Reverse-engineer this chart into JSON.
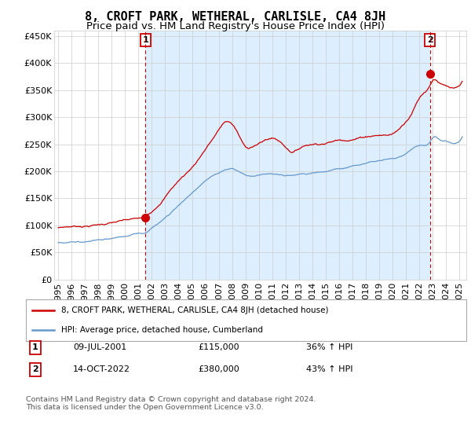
{
  "title": "8, CROFT PARK, WETHERAL, CARLISLE, CA4 8JH",
  "subtitle": "Price paid vs. HM Land Registry's House Price Index (HPI)",
  "ylabel_ticks": [
    "£0",
    "£50K",
    "£100K",
    "£150K",
    "£200K",
    "£250K",
    "£300K",
    "£350K",
    "£400K",
    "£450K"
  ],
  "ytick_values": [
    0,
    50000,
    100000,
    150000,
    200000,
    250000,
    300000,
    350000,
    400000,
    450000
  ],
  "ylim": [
    0,
    460000
  ],
  "xlim_start": 1994.7,
  "xlim_end": 2025.5,
  "sale1_year": 2001.52,
  "sale1_price": 115000,
  "sale2_year": 2022.79,
  "sale2_price": 380000,
  "sale1_label": "1",
  "sale2_label": "2",
  "sale1_date": "09-JUL-2001",
  "sale1_amount": "£115,000",
  "sale1_hpi": "36% ↑ HPI",
  "sale2_date": "14-OCT-2022",
  "sale2_amount": "£380,000",
  "sale2_hpi": "43% ↑ HPI",
  "legend_line1": "8, CROFT PARK, WETHERAL, CARLISLE, CA4 8JH (detached house)",
  "legend_line2": "HPI: Average price, detached house, Cumberland",
  "footnote": "Contains HM Land Registry data © Crown copyright and database right 2024.\nThis data is licensed under the Open Government Licence v3.0.",
  "line_color_red": "#cc0000",
  "line_color_blue": "#6699cc",
  "vline_color": "#cc0000",
  "shade_color": "#ddeeff",
  "background_color": "#ffffff",
  "grid_color": "#cccccc",
  "title_fontsize": 11,
  "subtitle_fontsize": 9.5,
  "tick_fontsize": 8,
  "xtick_years": [
    1995,
    1996,
    1997,
    1998,
    1999,
    2000,
    2001,
    2002,
    2003,
    2004,
    2005,
    2006,
    2007,
    2008,
    2009,
    2010,
    2011,
    2012,
    2013,
    2014,
    2015,
    2016,
    2017,
    2018,
    2019,
    2020,
    2021,
    2022,
    2023,
    2024,
    2025
  ]
}
